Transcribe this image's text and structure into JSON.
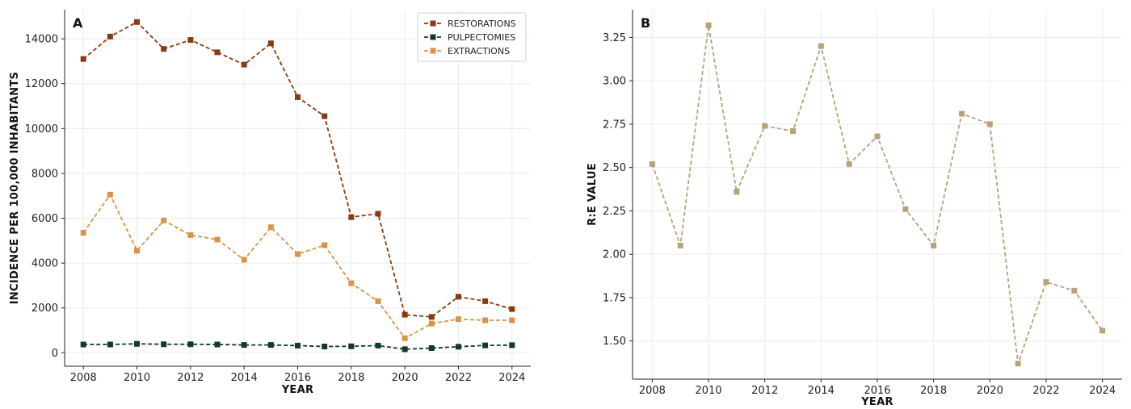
{
  "chart_data": [
    {
      "panel": "A",
      "type": "line",
      "xlabel": "YEAR",
      "ylabel": "INCIDENCE PER 100,000 INHABITANTS",
      "xlim": [
        2007.3,
        2024.7
      ],
      "ylim": [
        -600,
        15300
      ],
      "xticks": [
        2008,
        2010,
        2012,
        2014,
        2016,
        2018,
        2020,
        2022,
        2024
      ],
      "yticks": [
        0,
        2000,
        4000,
        6000,
        8000,
        10000,
        12000,
        14000
      ],
      "grid": true,
      "legend": "top-right",
      "x": [
        2008,
        2009,
        2010,
        2011,
        2012,
        2013,
        2014,
        2015,
        2016,
        2017,
        2018,
        2019,
        2020,
        2021,
        2022,
        2023,
        2024
      ],
      "series": [
        {
          "name": "RESTORATIONS",
          "color": "#8b3a0f",
          "values": [
            13100,
            14100,
            14750,
            13550,
            13950,
            13400,
            12850,
            13800,
            11400,
            10550,
            6050,
            6200,
            1700,
            1600,
            2500,
            2300,
            1950
          ]
        },
        {
          "name": "PULPECTOMIES",
          "color": "#123a2a",
          "values": [
            370,
            370,
            400,
            380,
            380,
            370,
            350,
            350,
            320,
            280,
            290,
            320,
            160,
            210,
            270,
            330,
            340
          ]
        },
        {
          "name": "EXTRACTIONS",
          "color": "#d9934a",
          "values": [
            5350,
            7050,
            4550,
            5900,
            5250,
            5050,
            4150,
            5600,
            4400,
            4800,
            3100,
            2300,
            650,
            1300,
            1500,
            1450,
            1450
          ]
        }
      ]
    },
    {
      "panel": "B",
      "type": "line",
      "xlabel": "YEAR",
      "ylabel": "R:E VALUE",
      "xlim": [
        2007.3,
        2024.7
      ],
      "ylim": [
        1.28,
        3.41
      ],
      "xticks": [
        2008,
        2010,
        2012,
        2014,
        2016,
        2018,
        2020,
        2022,
        2024
      ],
      "yticks": [
        1.5,
        1.75,
        2.0,
        2.25,
        2.5,
        2.75,
        3.0,
        3.25
      ],
      "ytick_labels": [
        "1.50",
        "1.75",
        "2.00",
        "2.25",
        "2.50",
        "2.75",
        "3.00",
        "3.25"
      ],
      "grid": true,
      "x": [
        2008,
        2009,
        2010,
        2011,
        2012,
        2013,
        2014,
        2015,
        2016,
        2017,
        2018,
        2019,
        2020,
        2021,
        2022,
        2023,
        2024
      ],
      "series": [
        {
          "name": "",
          "color": "#b5a47a",
          "values": [
            2.52,
            2.05,
            3.32,
            2.36,
            2.74,
            2.71,
            3.2,
            2.52,
            2.68,
            2.26,
            2.05,
            2.81,
            2.75,
            1.37,
            1.84,
            1.79,
            1.56
          ]
        }
      ]
    }
  ]
}
